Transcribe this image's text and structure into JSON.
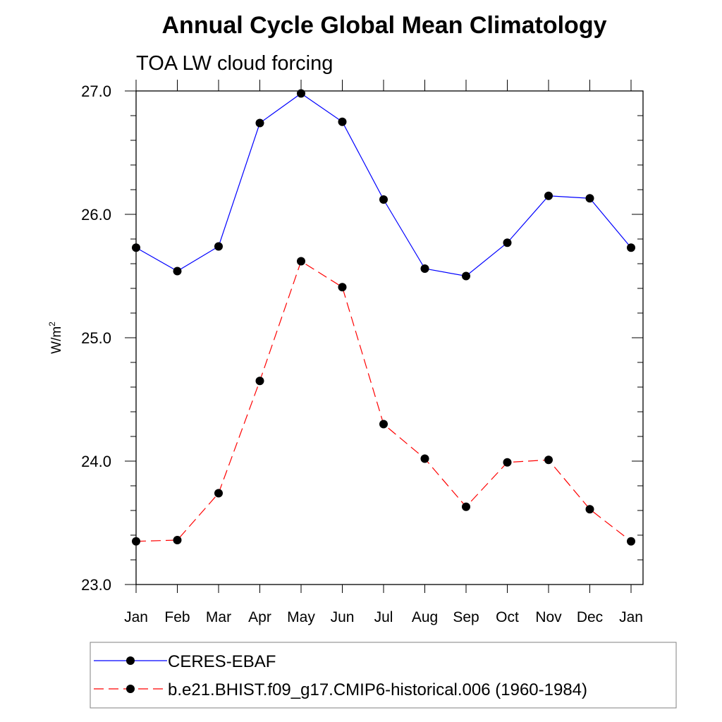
{
  "chart_data": {
    "type": "line",
    "title": "Annual Cycle Global Mean Climatology",
    "subtitle": "TOA LW cloud forcing",
    "xlabel": "",
    "ylabel": "W/m",
    "ylabel_superscript": "2",
    "categories": [
      "Jan",
      "Feb",
      "Mar",
      "Apr",
      "May",
      "Jun",
      "Jul",
      "Aug",
      "Sep",
      "Oct",
      "Nov",
      "Dec",
      "Jan"
    ],
    "ylim": [
      23.0,
      27.0
    ],
    "yticks": [
      "23.0",
      "24.0",
      "25.0",
      "26.0",
      "27.0"
    ],
    "grid": false,
    "legend_position": "bottom",
    "series": [
      {
        "name": "CERES-EBAF",
        "color": "#0000ff",
        "dash": "solid",
        "values": [
          25.73,
          25.54,
          25.74,
          26.74,
          26.98,
          26.75,
          26.12,
          25.56,
          25.5,
          25.77,
          26.15,
          26.13,
          25.73
        ]
      },
      {
        "name": "b.e21.BHIST.f09_g17.CMIP6-historical.006 (1960-1984)",
        "color": "#ff0000",
        "dash": "dashed",
        "values": [
          23.35,
          23.36,
          23.74,
          24.65,
          25.62,
          25.41,
          24.3,
          24.02,
          23.63,
          23.99,
          24.01,
          23.61,
          23.35
        ]
      }
    ]
  }
}
